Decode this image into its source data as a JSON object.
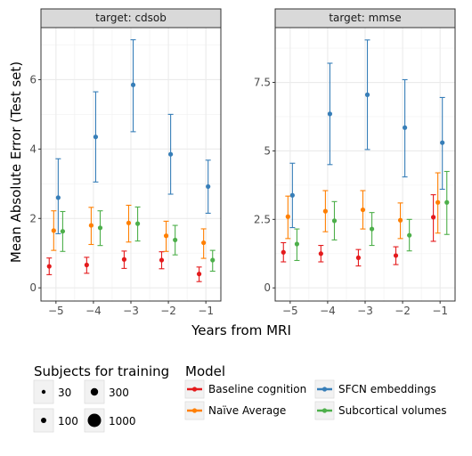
{
  "chart_data": {
    "type": "scatter",
    "xlabel": "Years from MRI",
    "ylabel": "Mean Absolute Error (Test set)",
    "x_ticks": [
      "−5",
      "−4",
      "−3",
      "−2",
      "−1"
    ],
    "legend_size_title": "Subjects for training",
    "legend_size_entries": [
      "30",
      "300",
      "100",
      "1000"
    ],
    "legend_model_title": "Model",
    "models": [
      {
        "name": "Baseline cognition",
        "color": "#e41a1c",
        "offset": -0.18
      },
      {
        "name": "Naïve Average",
        "color": "#ff7f00",
        "offset": -0.06
      },
      {
        "name": "SFCN embeddings",
        "color": "#377eb8",
        "offset": 0.06
      },
      {
        "name": "Subcortical volumes",
        "color": "#4daf4a",
        "offset": 0.18
      }
    ],
    "panels": [
      {
        "title": "target: cdsob",
        "xlim": [
          -5.4,
          -0.6
        ],
        "ylim": [
          -0.38,
          7.5
        ],
        "y_ticks": [
          0,
          2,
          4,
          6
        ],
        "y_tick_labels": [
          "0",
          "2",
          "4",
          "6"
        ],
        "series": [
          {
            "name": "Baseline cognition",
            "points": [
              {
                "x": -5,
                "y": 0.62,
                "lo": 0.38,
                "hi": 0.86,
                "n": 30
              },
              {
                "x": -4,
                "y": 0.66,
                "lo": 0.42,
                "hi": 0.88,
                "n": 30
              },
              {
                "x": -3,
                "y": 0.82,
                "lo": 0.56,
                "hi": 1.06,
                "n": 30
              },
              {
                "x": -2,
                "y": 0.8,
                "lo": 0.55,
                "hi": 1.04,
                "n": 30
              },
              {
                "x": -1,
                "y": 0.4,
                "lo": 0.18,
                "hi": 0.6,
                "n": 30
              }
            ]
          },
          {
            "name": "Naïve Average",
            "points": [
              {
                "x": -5,
                "y": 1.65,
                "lo": 1.08,
                "hi": 2.22,
                "n": 30
              },
              {
                "x": -4,
                "y": 1.8,
                "lo": 1.25,
                "hi": 2.32,
                "n": 30
              },
              {
                "x": -3,
                "y": 1.87,
                "lo": 1.32,
                "hi": 2.38,
                "n": 30
              },
              {
                "x": -2,
                "y": 1.5,
                "lo": 1.05,
                "hi": 1.92,
                "n": 30
              },
              {
                "x": -1,
                "y": 1.3,
                "lo": 0.85,
                "hi": 1.7,
                "n": 30
              }
            ]
          },
          {
            "name": "SFCN embeddings",
            "points": [
              {
                "x": -5,
                "y": 2.6,
                "lo": 1.56,
                "hi": 3.72,
                "n": 30
              },
              {
                "x": -4,
                "y": 4.35,
                "lo": 3.05,
                "hi": 5.65,
                "n": 30
              },
              {
                "x": -3,
                "y": 5.85,
                "lo": 4.5,
                "hi": 7.15,
                "n": 30
              },
              {
                "x": -2,
                "y": 3.85,
                "lo": 2.7,
                "hi": 5.0,
                "n": 30
              },
              {
                "x": -1,
                "y": 2.92,
                "lo": 2.15,
                "hi": 3.68,
                "n": 30
              }
            ]
          },
          {
            "name": "Subcortical volumes",
            "points": [
              {
                "x": -5,
                "y": 1.63,
                "lo": 1.05,
                "hi": 2.2,
                "n": 30
              },
              {
                "x": -4,
                "y": 1.73,
                "lo": 1.22,
                "hi": 2.22,
                "n": 30
              },
              {
                "x": -3,
                "y": 1.85,
                "lo": 1.35,
                "hi": 2.33,
                "n": 30
              },
              {
                "x": -2,
                "y": 1.38,
                "lo": 0.95,
                "hi": 1.8,
                "n": 30
              },
              {
                "x": -1,
                "y": 0.8,
                "lo": 0.48,
                "hi": 1.08,
                "n": 30
              }
            ]
          }
        ]
      },
      {
        "title": "target: mmse",
        "xlim": [
          -5.4,
          -0.6
        ],
        "ylim": [
          -0.48,
          9.5
        ],
        "y_ticks": [
          0,
          2.5,
          5,
          7.5
        ],
        "y_tick_labels": [
          "0",
          "2.5",
          "5",
          "7.5"
        ],
        "series": [
          {
            "name": "Baseline cognition",
            "points": [
              {
                "x": -5,
                "y": 1.3,
                "lo": 0.95,
                "hi": 1.65,
                "n": 30
              },
              {
                "x": -4,
                "y": 1.25,
                "lo": 0.95,
                "hi": 1.55,
                "n": 30
              },
              {
                "x": -3,
                "y": 1.1,
                "lo": 0.8,
                "hi": 1.4,
                "n": 30
              },
              {
                "x": -2,
                "y": 1.18,
                "lo": 0.85,
                "hi": 1.5,
                "n": 30
              },
              {
                "x": -1,
                "y": 2.58,
                "lo": 1.7,
                "hi": 3.4,
                "n": 30
              }
            ]
          },
          {
            "name": "Naïve Average",
            "points": [
              {
                "x": -5,
                "y": 2.6,
                "lo": 1.8,
                "hi": 3.35,
                "n": 30
              },
              {
                "x": -4,
                "y": 2.8,
                "lo": 2.05,
                "hi": 3.55,
                "n": 30
              },
              {
                "x": -3,
                "y": 2.85,
                "lo": 2.15,
                "hi": 3.55,
                "n": 30
              },
              {
                "x": -2,
                "y": 2.47,
                "lo": 1.8,
                "hi": 3.1,
                "n": 30
              },
              {
                "x": -1,
                "y": 3.12,
                "lo": 2.0,
                "hi": 4.2,
                "n": 30
              }
            ]
          },
          {
            "name": "SFCN embeddings",
            "points": [
              {
                "x": -5,
                "y": 3.38,
                "lo": 2.2,
                "hi": 4.55,
                "n": 30
              },
              {
                "x": -4,
                "y": 6.35,
                "lo": 4.5,
                "hi": 8.2,
                "n": 30
              },
              {
                "x": -3,
                "y": 7.05,
                "lo": 5.05,
                "hi": 9.05,
                "n": 30
              },
              {
                "x": -2,
                "y": 5.85,
                "lo": 4.05,
                "hi": 7.6,
                "n": 30
              },
              {
                "x": -1,
                "y": 5.3,
                "lo": 3.6,
                "hi": 6.95,
                "n": 30
              }
            ]
          },
          {
            "name": "Subcortical volumes",
            "points": [
              {
                "x": -5,
                "y": 1.6,
                "lo": 1.0,
                "hi": 2.15,
                "n": 30
              },
              {
                "x": -4,
                "y": 2.45,
                "lo": 1.75,
                "hi": 3.15,
                "n": 30
              },
              {
                "x": -3,
                "y": 2.15,
                "lo": 1.55,
                "hi": 2.75,
                "n": 30
              },
              {
                "x": -2,
                "y": 1.92,
                "lo": 1.35,
                "hi": 2.5,
                "n": 30
              },
              {
                "x": -1,
                "y": 3.12,
                "lo": 1.95,
                "hi": 4.25,
                "n": 30
              }
            ]
          }
        ]
      }
    ]
  }
}
